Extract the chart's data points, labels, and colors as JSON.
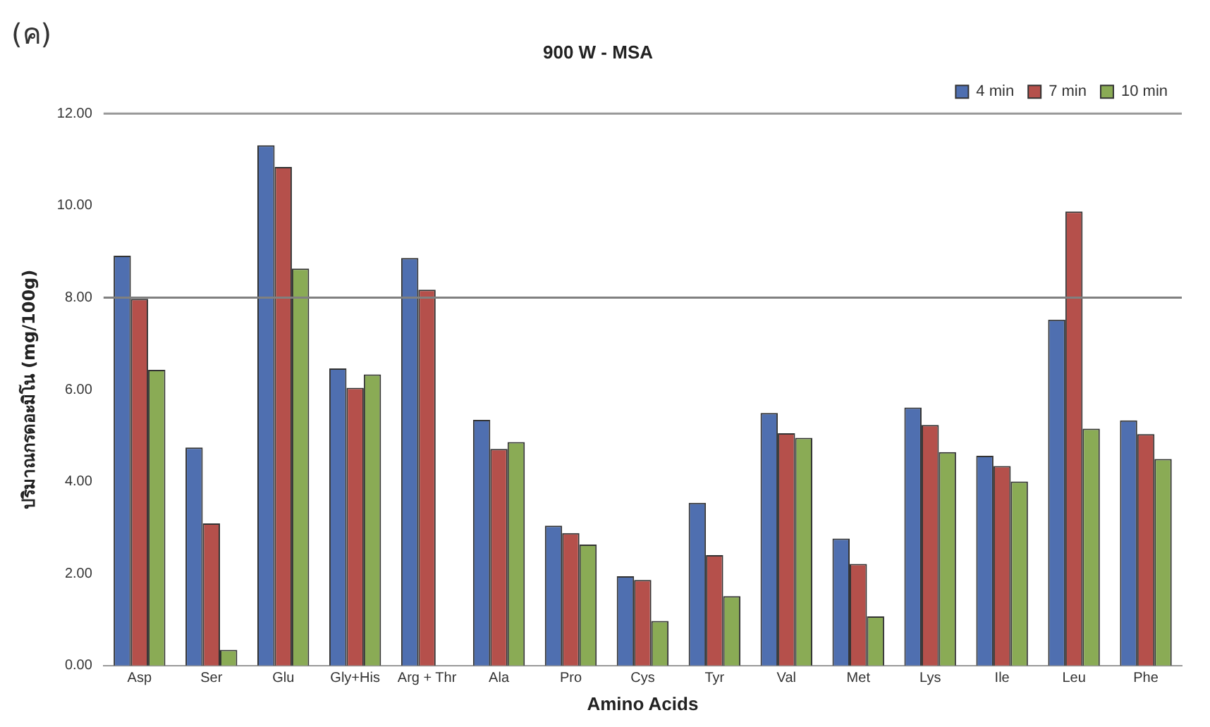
{
  "chart_data": {
    "type": "bar",
    "title": "900 W - MSA",
    "xlabel": "Amino Acids",
    "ylabel": "ปริมาณกรดอะมิโน (mg/100g)",
    "annotations": [
      "(ค)"
    ],
    "categories": [
      "Asp",
      "Ser",
      "Glu",
      "Gly+His",
      "Arg + Thr",
      "Ala",
      "Pro",
      "Cys",
      "Tyr",
      "Val",
      "Met",
      "Lys",
      "Ile",
      "Leu",
      "Phe"
    ],
    "series": [
      {
        "name": "4 min",
        "color": "#4f6fb0",
        "values": [
          8.91,
          4.74,
          11.31,
          6.46,
          8.86,
          5.34,
          3.04,
          1.94,
          3.54,
          5.49,
          2.76,
          5.61,
          4.56,
          7.52,
          5.33
        ]
      },
      {
        "name": "7 min",
        "color": "#b5504b",
        "values": [
          7.97,
          3.09,
          10.84,
          6.04,
          8.17,
          4.71,
          2.88,
          1.86,
          2.4,
          5.05,
          2.21,
          5.23,
          4.34,
          9.87,
          5.03
        ]
      },
      {
        "name": "10 min",
        "color": "#8aab55",
        "values": [
          6.43,
          0.34,
          8.63,
          6.33,
          null,
          4.86,
          2.63,
          0.97,
          1.51,
          4.95,
          1.07,
          4.64,
          4,
          5.15,
          4.49
        ]
      }
    ],
    "ylim": [
      0,
      12
    ],
    "yticks": [
      {
        "value": 0,
        "label": "0.00"
      },
      {
        "value": 2,
        "label": "2.00"
      },
      {
        "value": 4,
        "label": "4.00"
      },
      {
        "value": 6,
        "label": "6.00"
      },
      {
        "value": 8,
        "label": "8.00"
      },
      {
        "value": 10,
        "label": "10.00"
      },
      {
        "value": 12,
        "label": "12.00"
      }
    ],
    "ref_lines": [
      {
        "axis": "y",
        "value": 8,
        "color": "#808080"
      }
    ],
    "grid": false,
    "legend": "top right"
  }
}
